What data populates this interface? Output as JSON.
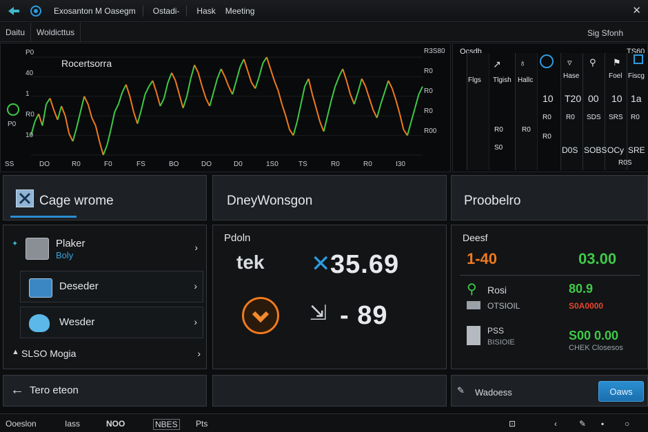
{
  "titlebar": {
    "menu": [
      "Exosanton M Oasegm",
      "Ostadi-",
      "Hask",
      "Meeting"
    ]
  },
  "subbar": {
    "tabs": [
      "Daitu",
      "Woldicttus"
    ],
    "right_label": "Sig Sfonh"
  },
  "chart": {
    "title": "Rocertsorra",
    "right_ticks": [
      "R3S80",
      "R0",
      "R0",
      "R0",
      "R00"
    ],
    "left_ticks": [
      "P0",
      "40",
      "1",
      "R0",
      "10"
    ],
    "x_labels": [
      "DO",
      "R0",
      "F0",
      "FS",
      "BO",
      "DO",
      "D0",
      "1S0",
      "TS",
      "R0",
      "R0",
      "I30"
    ],
    "left_bottom": "SS",
    "left_mid": "P0"
  },
  "chart_data": {
    "type": "line",
    "title": "Rocertsorra",
    "series": [
      {
        "name": "",
        "values": [
          118,
          132,
          140,
          128,
          150,
          156,
          144,
          134,
          148,
          138,
          120,
          112,
          126,
          142,
          158,
          150,
          136,
          128,
          112,
          98,
          108,
          124,
          142,
          150,
          162,
          170,
          158,
          142,
          130,
          144,
          160,
          168,
          174,
          162,
          148,
          156,
          172,
          182,
          174,
          160,
          146,
          158,
          176,
          190,
          182,
          168,
          156,
          148,
          162,
          176,
          186,
          178,
          168,
          160,
          174,
          188,
          196,
          184,
          172,
          166,
          178,
          192,
          198,
          186,
          174,
          164,
          150,
          138,
          124,
          118,
          132,
          150,
          168,
          176,
          160,
          146,
          132,
          122,
          138,
          154,
          168,
          178,
          186,
          174,
          160,
          150,
          162,
          176,
          168,
          156,
          144,
          136,
          150,
          162,
          174,
          166,
          154,
          140,
          124,
          118,
          132,
          146,
          160,
          168
        ]
      }
    ]
  },
  "matrix": {
    "header": "Ocsdb",
    "header_right": "TS60",
    "row1": [
      "Flgs",
      "Tlgish",
      "Hallc",
      "Hase",
      "Foel",
      "Fiscg"
    ],
    "row2": [
      "10",
      "T20",
      "00",
      "10",
      "1a"
    ],
    "row3": [
      "R0",
      "R0",
      "SDS",
      "SRS",
      "R0",
      "S0"
    ],
    "row4": [
      "R0",
      "R0",
      "R0",
      "D0S",
      "SOBS",
      "OCy",
      "SRE"
    ],
    "row5": [
      "R0S"
    ]
  },
  "cards": {
    "card1_title": "Cage wrome",
    "card2_title": "DneyWonsgon",
    "card3_title": "Proobelro"
  },
  "list": {
    "items": [
      {
        "label": "Plaker",
        "sub": "Boly"
      },
      {
        "label": "Deseder"
      },
      {
        "label": "Wesder"
      }
    ],
    "footer": "SLSO Mogia"
  },
  "middle": {
    "label": "Pdoln",
    "value1_prefix": "tek",
    "value1": "35.69",
    "value2": "- 89"
  },
  "right": {
    "label": "Deesf",
    "range_left": "1-40",
    "range_right": "03.00",
    "row1_label": "Rosi",
    "row1_value": "80.9",
    "row2_label": "OTSIOIL",
    "row2_value": "S0A0000",
    "row3_label": "PSS",
    "row3_sub": "BISIOIE",
    "row3_value": "S00 0.00",
    "row3_value_sub": "CHEK Closesos"
  },
  "footer_left": {
    "label": "Tero eteon"
  },
  "footer_right": {
    "label": "Wadoess",
    "button": "Oaws"
  },
  "bottombar": {
    "items": [
      "Ooeslon",
      "Iass",
      "NOO",
      "NBES",
      "Pts"
    ]
  },
  "colors": {
    "accent_blue": "#2a8ed1",
    "up_green": "#3ecb47",
    "down_orange": "#f07a1e",
    "alert_red": "#e8452b"
  }
}
